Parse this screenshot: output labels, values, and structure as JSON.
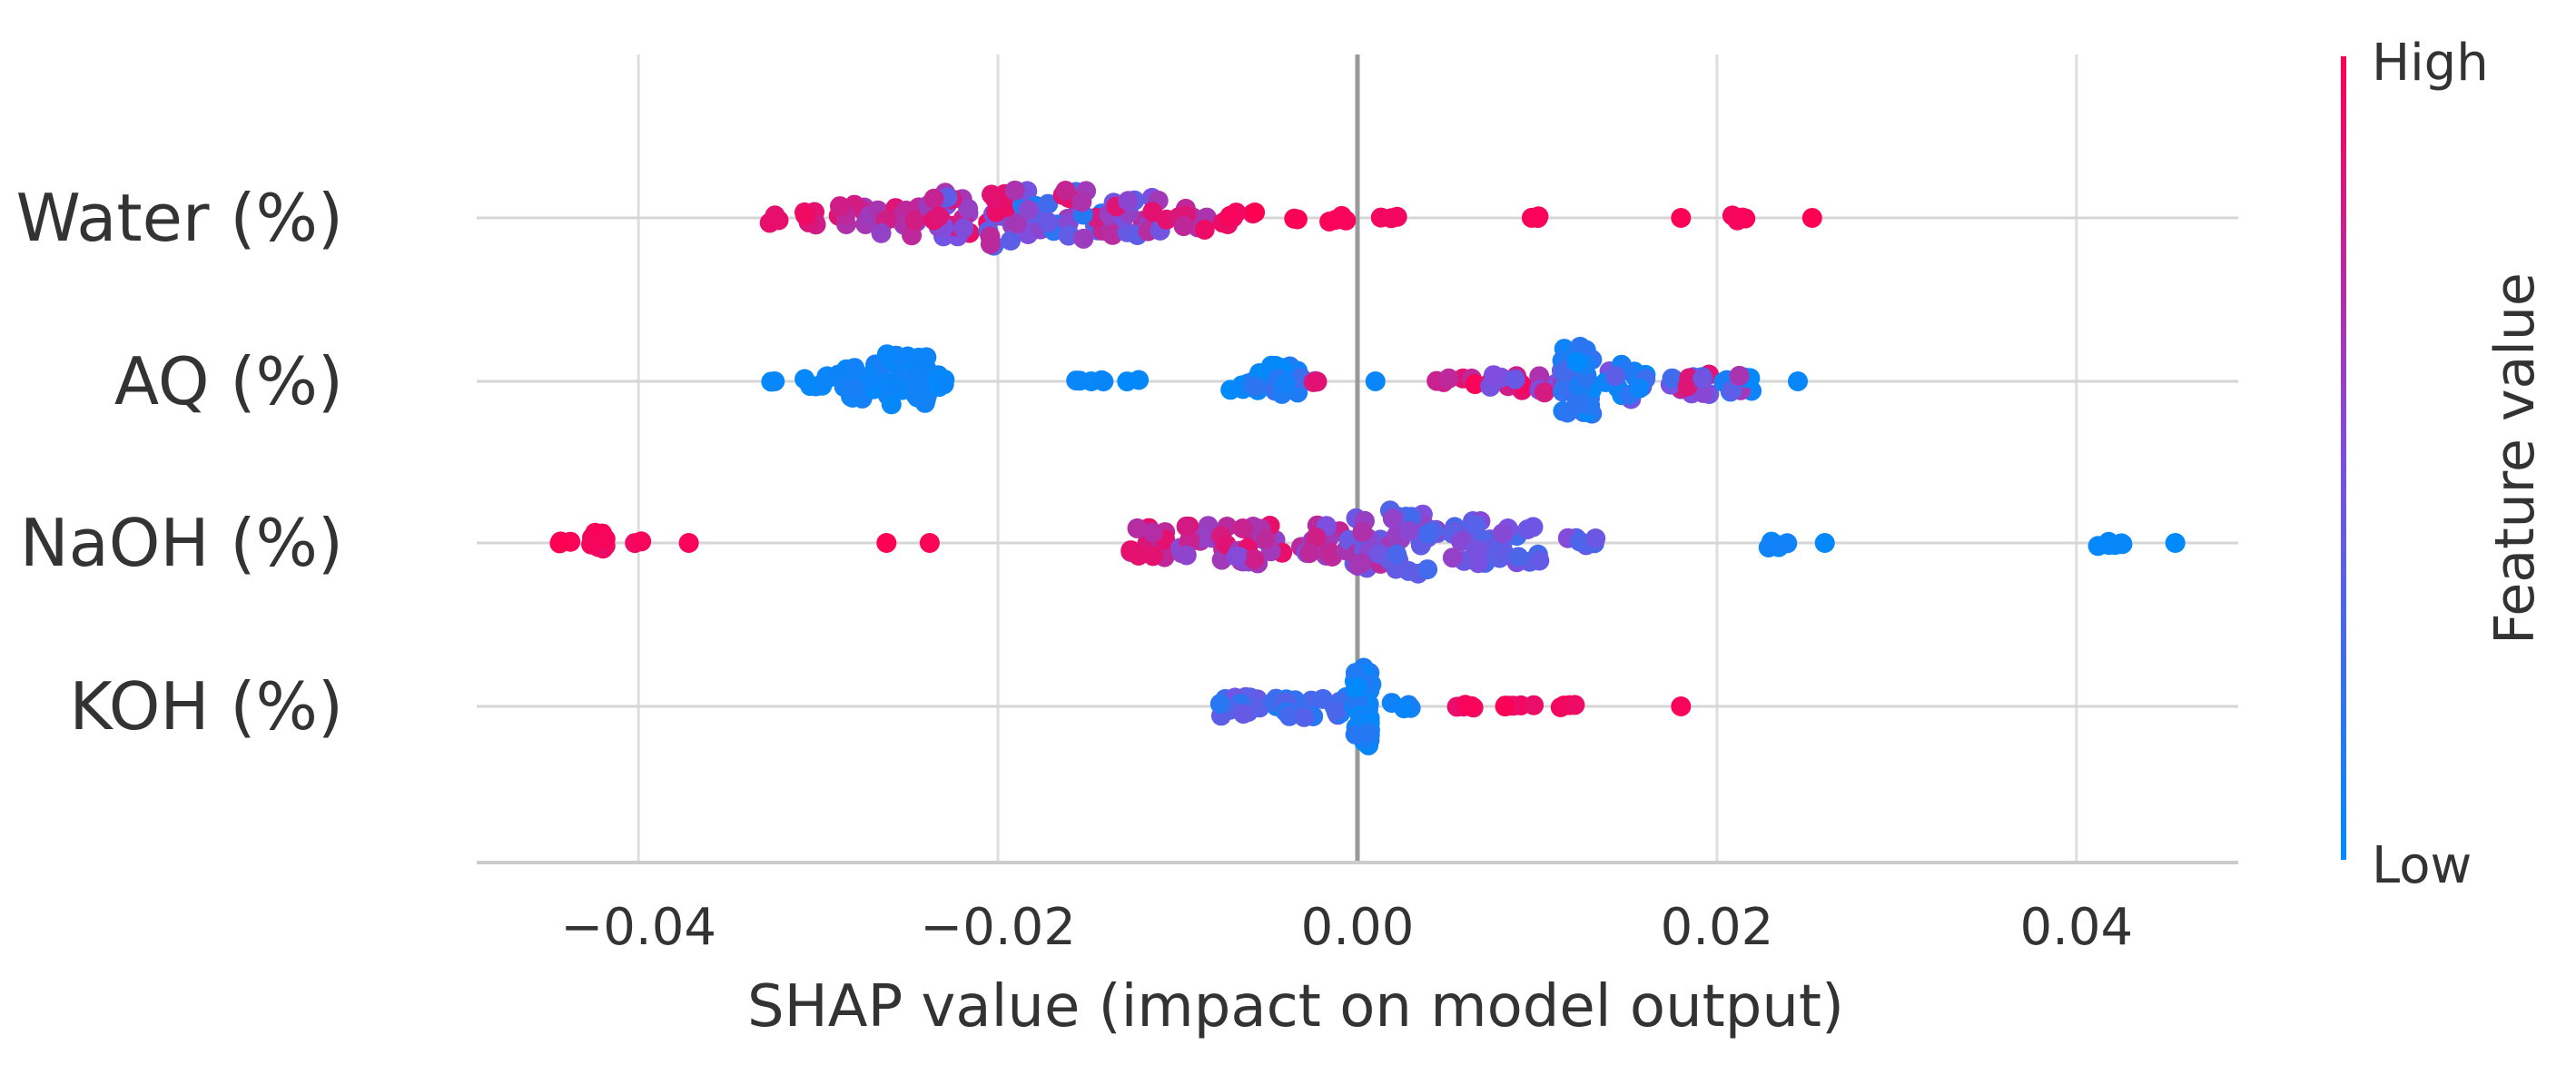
{
  "chart_data": {
    "type": "scatter",
    "title": "",
    "xlabel": "SHAP value (impact on model output)",
    "ylabel": "",
    "xlim": [
      -0.049,
      0.049
    ],
    "xticks": [
      -0.04,
      -0.02,
      0.0,
      0.02,
      0.04
    ],
    "xtick_labels": [
      "−0.04",
      "−0.02",
      "0.00",
      "0.02",
      "0.04"
    ],
    "grid": "vertical",
    "zero_line": 0.0,
    "colorbar": {
      "title": "Feature value",
      "high_label": "High",
      "low_label": "Low",
      "high_color": "#ff0052",
      "low_color": "#008afb",
      "placement": "right"
    },
    "features": [
      {
        "name": "Water (%)",
        "clusters": [
          {
            "x": -0.0325,
            "n": 3,
            "spread": 0.0003,
            "height": 0.08,
            "f": [
              0.88,
              0.92
            ]
          },
          {
            "x": -0.0305,
            "n": 6,
            "spread": 0.0005,
            "height": 0.12,
            "f": [
              0.8,
              0.95
            ]
          },
          {
            "x": -0.0282,
            "n": 12,
            "spread": 0.0012,
            "height": 0.2,
            "f": [
              0.62,
              0.92
            ]
          },
          {
            "x": -0.0255,
            "n": 14,
            "spread": 0.0012,
            "height": 0.22,
            "f": [
              0.55,
              0.95
            ]
          },
          {
            "x": -0.0225,
            "n": 22,
            "spread": 0.0014,
            "height": 0.32,
            "f": [
              0.3,
              0.92
            ]
          },
          {
            "x": -0.0198,
            "n": 24,
            "spread": 0.0015,
            "height": 0.36,
            "f": [
              0.1,
              0.98
            ]
          },
          {
            "x": -0.0172,
            "n": 12,
            "spread": 0.0012,
            "height": 0.2,
            "f": [
              0.05,
              0.7
            ]
          },
          {
            "x": -0.015,
            "n": 26,
            "spread": 0.0014,
            "height": 0.36,
            "f": [
              0.1,
              0.9
            ]
          },
          {
            "x": -0.0122,
            "n": 18,
            "spread": 0.0014,
            "height": 0.26,
            "f": [
              0.35,
              0.92
            ]
          },
          {
            "x": -0.0095,
            "n": 10,
            "spread": 0.0012,
            "height": 0.16,
            "f": [
              0.5,
              0.95
            ]
          },
          {
            "x": -0.0065,
            "n": 8,
            "spread": 0.001,
            "height": 0.12,
            "f": [
              0.9,
              1.0
            ]
          },
          {
            "x": -0.0035,
            "n": 2,
            "spread": 0.0004,
            "height": 0.02,
            "f": [
              0.95,
              1.0
            ]
          },
          {
            "x": -0.001,
            "n": 4,
            "spread": 0.0006,
            "height": 0.05,
            "f": [
              0.95,
              1.0
            ]
          },
          {
            "x": 0.0015,
            "n": 3,
            "spread": 0.0008,
            "height": 0.02,
            "f": [
              0.95,
              1.0
            ]
          },
          {
            "x": 0.0098,
            "n": 3,
            "spread": 0.0004,
            "height": 0.02,
            "f": [
              0.95,
              1.0
            ]
          },
          {
            "x": 0.018,
            "n": 1,
            "spread": 0.0,
            "height": 0.0,
            "f": [
              0.98,
              1.0
            ]
          },
          {
            "x": 0.0212,
            "n": 4,
            "spread": 0.0004,
            "height": 0.04,
            "f": [
              0.95,
              1.0
            ]
          },
          {
            "x": 0.0253,
            "n": 1,
            "spread": 0.0,
            "height": 0.0,
            "f": [
              0.98,
              1.0
            ]
          }
        ]
      },
      {
        "name": "AQ (%)",
        "clusters": [
          {
            "x": -0.0325,
            "n": 2,
            "spread": 0.0003,
            "height": 0.02,
            "f": [
              0.0,
              0.05
            ]
          },
          {
            "x": -0.03,
            "n": 8,
            "spread": 0.0008,
            "height": 0.08,
            "f": [
              0.0,
              0.08
            ]
          },
          {
            "x": -0.0275,
            "n": 22,
            "spread": 0.0014,
            "height": 0.22,
            "f": [
              0.0,
              0.1
            ]
          },
          {
            "x": -0.025,
            "n": 30,
            "spread": 0.0012,
            "height": 0.34,
            "f": [
              0.0,
              0.08
            ]
          },
          {
            "x": -0.023,
            "n": 6,
            "spread": 0.0006,
            "height": 0.1,
            "f": [
              0.0,
              0.06
            ]
          },
          {
            "x": -0.015,
            "n": 5,
            "spread": 0.001,
            "height": 0.02,
            "f": [
              0.0,
              0.06
            ]
          },
          {
            "x": -0.0125,
            "n": 2,
            "spread": 0.0004,
            "height": 0.02,
            "f": [
              0.0,
              0.05
            ]
          },
          {
            "x": -0.006,
            "n": 10,
            "spread": 0.0012,
            "height": 0.14,
            "f": [
              0.0,
              0.2
            ]
          },
          {
            "x": -0.0038,
            "n": 14,
            "spread": 0.001,
            "height": 0.2,
            "f": [
              0.0,
              0.25
            ]
          },
          {
            "x": -0.002,
            "n": 3,
            "spread": 0.0005,
            "height": 0.03,
            "f": [
              0.2,
              0.9
            ]
          },
          {
            "x": 0.001,
            "n": 1,
            "spread": 0.0,
            "height": 0.0,
            "f": [
              0.0,
              0.05
            ]
          },
          {
            "x": 0.0055,
            "n": 6,
            "spread": 0.0012,
            "height": 0.06,
            "f": [
              0.7,
              1.0
            ]
          },
          {
            "x": 0.0085,
            "n": 10,
            "spread": 0.0012,
            "height": 0.12,
            "f": [
              0.4,
              1.0
            ]
          },
          {
            "x": 0.0108,
            "n": 8,
            "spread": 0.0008,
            "height": 0.14,
            "f": [
              0.4,
              0.95
            ]
          },
          {
            "x": 0.0122,
            "n": 40,
            "spread": 0.0009,
            "height": 0.44,
            "f": [
              0.0,
              0.3
            ]
          },
          {
            "x": 0.015,
            "n": 18,
            "spread": 0.0012,
            "height": 0.24,
            "f": [
              0.0,
              0.6
            ]
          },
          {
            "x": 0.0185,
            "n": 14,
            "spread": 0.0012,
            "height": 0.2,
            "f": [
              0.1,
              0.9
            ]
          },
          {
            "x": 0.0212,
            "n": 10,
            "spread": 0.001,
            "height": 0.14,
            "f": [
              0.0,
              0.7
            ]
          },
          {
            "x": 0.0245,
            "n": 1,
            "spread": 0.0,
            "height": 0.0,
            "f": [
              0.0,
              0.05
            ]
          }
        ]
      },
      {
        "name": "NaOH (%)",
        "clusters": [
          {
            "x": -0.044,
            "n": 4,
            "spread": 0.0004,
            "height": 0.02,
            "f": [
              0.95,
              1.0
            ]
          },
          {
            "x": -0.0422,
            "n": 10,
            "spread": 0.0006,
            "height": 0.14,
            "f": [
              0.92,
              1.0
            ]
          },
          {
            "x": -0.04,
            "n": 2,
            "spread": 0.0002,
            "height": 0.02,
            "f": [
              0.92,
              1.0
            ]
          },
          {
            "x": -0.0372,
            "n": 1,
            "spread": 0.0,
            "height": 0.0,
            "f": [
              0.95,
              1.0
            ]
          },
          {
            "x": -0.0262,
            "n": 1,
            "spread": 0.0,
            "height": 0.0,
            "f": [
              0.95,
              1.0
            ]
          },
          {
            "x": -0.0238,
            "n": 1,
            "spread": 0.0,
            "height": 0.0,
            "f": [
              0.95,
              1.0
            ]
          },
          {
            "x": -0.0115,
            "n": 14,
            "spread": 0.0012,
            "height": 0.2,
            "f": [
              0.7,
              0.95
            ]
          },
          {
            "x": -0.0085,
            "n": 16,
            "spread": 0.0014,
            "height": 0.22,
            "f": [
              0.55,
              0.92
            ]
          },
          {
            "x": -0.0055,
            "n": 20,
            "spread": 0.0014,
            "height": 0.26,
            "f": [
              0.5,
              0.92
            ]
          },
          {
            "x": -0.0022,
            "n": 16,
            "spread": 0.0012,
            "height": 0.22,
            "f": [
              0.45,
              0.85
            ]
          },
          {
            "x": 0.0005,
            "n": 22,
            "spread": 0.0012,
            "height": 0.32,
            "f": [
              0.3,
              0.75
            ]
          },
          {
            "x": 0.0032,
            "n": 30,
            "spread": 0.0014,
            "height": 0.42,
            "f": [
              0.25,
              0.65
            ]
          },
          {
            "x": 0.0062,
            "n": 18,
            "spread": 0.0012,
            "height": 0.28,
            "f": [
              0.25,
              0.6
            ]
          },
          {
            "x": 0.009,
            "n": 14,
            "spread": 0.0012,
            "height": 0.26,
            "f": [
              0.25,
              0.55
            ]
          },
          {
            "x": 0.0125,
            "n": 6,
            "spread": 0.001,
            "height": 0.06,
            "f": [
              0.3,
              0.55
            ]
          },
          {
            "x": 0.0232,
            "n": 6,
            "spread": 0.0008,
            "height": 0.06,
            "f": [
              0.0,
              0.08
            ]
          },
          {
            "x": 0.026,
            "n": 1,
            "spread": 0.0,
            "height": 0.0,
            "f": [
              0.0,
              0.05
            ]
          },
          {
            "x": 0.0418,
            "n": 6,
            "spread": 0.0008,
            "height": 0.06,
            "f": [
              0.0,
              0.08
            ]
          },
          {
            "x": 0.0455,
            "n": 1,
            "spread": 0.0,
            "height": 0.0,
            "f": [
              0.0,
              0.05
            ]
          }
        ]
      },
      {
        "name": "KOH (%)",
        "clusters": [
          {
            "x": -0.0065,
            "n": 12,
            "spread": 0.0012,
            "height": 0.12,
            "f": [
              0.15,
              0.45
            ]
          },
          {
            "x": -0.0035,
            "n": 16,
            "spread": 0.0012,
            "height": 0.14,
            "f": [
              0.1,
              0.4
            ]
          },
          {
            "x": -0.0012,
            "n": 10,
            "spread": 0.0008,
            "height": 0.12,
            "f": [
              0.05,
              0.35
            ]
          },
          {
            "x": 0.0003,
            "n": 44,
            "spread": 0.0005,
            "height": 0.5,
            "f": [
              0.0,
              0.15
            ]
          },
          {
            "x": 0.0025,
            "n": 6,
            "spread": 0.0006,
            "height": 0.06,
            "f": [
              0.0,
              0.15
            ]
          },
          {
            "x": 0.0058,
            "n": 5,
            "spread": 0.001,
            "height": 0.02,
            "f": [
              0.9,
              1.0
            ]
          },
          {
            "x": 0.009,
            "n": 6,
            "spread": 0.001,
            "height": 0.02,
            "f": [
              0.9,
              1.0
            ]
          },
          {
            "x": 0.0118,
            "n": 4,
            "spread": 0.0006,
            "height": 0.02,
            "f": [
              0.92,
              1.0
            ]
          },
          {
            "x": 0.018,
            "n": 1,
            "spread": 0.0,
            "height": 0.0,
            "f": [
              0.95,
              1.0
            ]
          }
        ]
      }
    ]
  }
}
